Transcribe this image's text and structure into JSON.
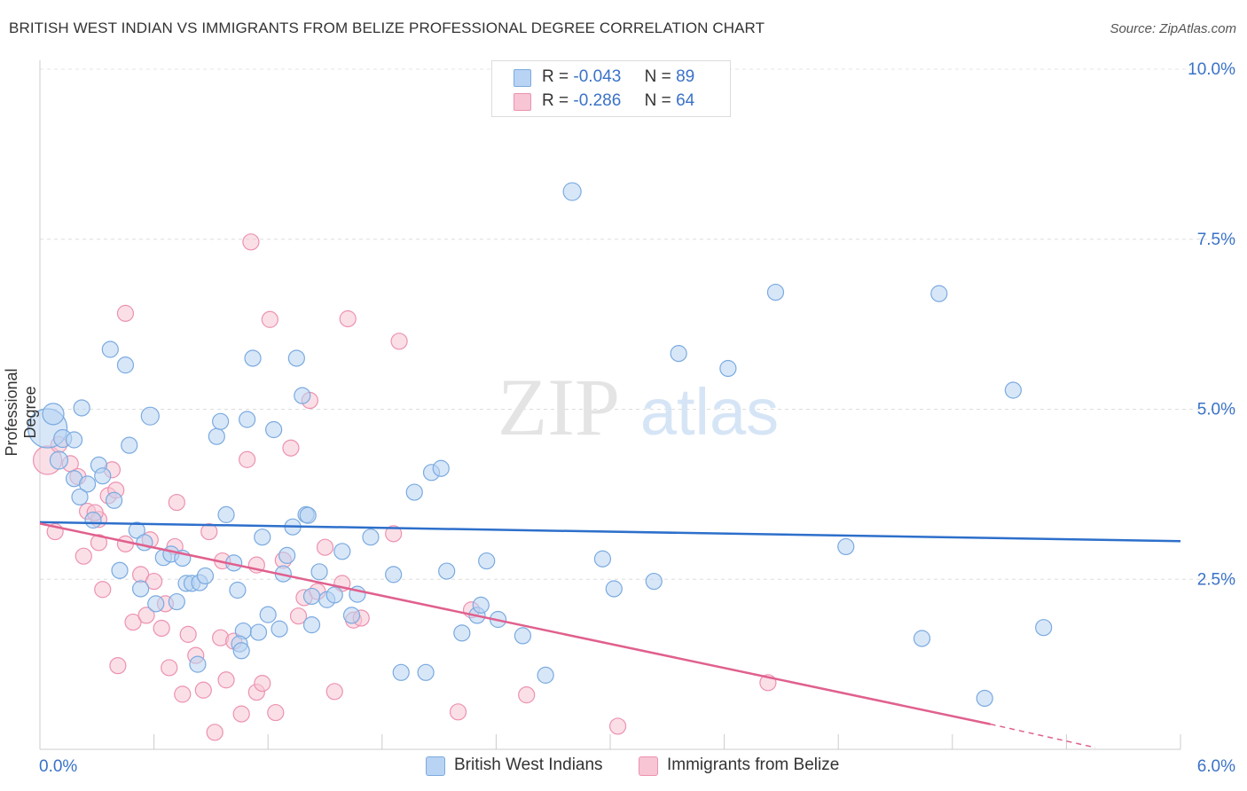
{
  "title": "BRITISH WEST INDIAN VS IMMIGRANTS FROM BELIZE PROFESSIONAL DEGREE CORRELATION CHART",
  "source": "Source: ZipAtlas.com",
  "watermark": {
    "zip": "ZIP",
    "atlas": "atlas"
  },
  "legend": {
    "r_label": "R =",
    "n_label": "N =",
    "rows": [
      {
        "r": "-0.043",
        "n": "89",
        "color": "#a8c8f0"
      },
      {
        "r": "-0.286",
        "n": "64",
        "color": "#f4b8cb"
      }
    ]
  },
  "colors": {
    "blue_fill": "#b8d3f3",
    "blue_stroke": "#7aaae0",
    "blue_line": "#2d6fcb",
    "pink_fill": "#f7c5d4",
    "pink_stroke": "#ec92b0",
    "pink_line": "#e0608e",
    "axis_text": "#3a72c8"
  },
  "chart_data": {
    "type": "scatter",
    "title": "BRITISH WEST INDIAN VS IMMIGRANTS FROM BELIZE PROFESSIONAL DEGREE CORRELATION CHART",
    "xlabel": "",
    "ylabel": "Professional Degree",
    "xlim": [
      0.0,
      6.0
    ],
    "ylim": [
      0.0,
      10.0
    ],
    "x_tick_labels": [
      "0.0%",
      "6.0%"
    ],
    "y_ticks": [
      2.5,
      5.0,
      7.5,
      10.0
    ],
    "y_tick_labels": [
      "2.5%",
      "5.0%",
      "7.5%",
      "10.0%"
    ],
    "grid": true,
    "legend_position": "top-center",
    "series": [
      {
        "name": "British West Indians",
        "r": -0.043,
        "n": 89,
        "trend": {
          "x0": 0.0,
          "y0": 3.34,
          "x1": 6.0,
          "y1": 3.06
        },
        "points": [
          [
            0.04,
            4.72,
            22
          ],
          [
            0.07,
            4.93,
            12
          ],
          [
            0.12,
            4.57,
            10
          ],
          [
            0.1,
            4.25,
            10
          ],
          [
            0.22,
            5.02,
            9
          ],
          [
            0.18,
            4.55,
            9
          ],
          [
            0.37,
            5.88,
            9
          ],
          [
            0.45,
            5.65,
            9
          ],
          [
            0.58,
            4.9,
            10
          ],
          [
            0.47,
            4.47,
            9
          ],
          [
            0.31,
            4.18,
            9
          ],
          [
            0.33,
            4.02,
            9
          ],
          [
            0.18,
            3.98,
            9
          ],
          [
            0.25,
            3.9,
            9
          ],
          [
            0.21,
            3.71,
            9
          ],
          [
            0.39,
            3.66,
            9
          ],
          [
            0.28,
            3.37,
            9
          ],
          [
            0.51,
            3.22,
            9
          ],
          [
            0.55,
            3.04,
            9
          ],
          [
            0.42,
            2.63,
            9
          ],
          [
            0.53,
            2.36,
            9
          ],
          [
            0.61,
            2.14,
            9
          ],
          [
            0.65,
            2.82,
            9
          ],
          [
            0.69,
            2.87,
            9
          ],
          [
            0.72,
            2.17,
            9
          ],
          [
            0.75,
            2.81,
            9
          ],
          [
            0.77,
            2.44,
            9
          ],
          [
            0.8,
            2.44,
            9
          ],
          [
            0.84,
            2.45,
            9
          ],
          [
            0.87,
            2.55,
            9
          ],
          [
            0.93,
            4.6,
            9
          ],
          [
            0.95,
            4.82,
            9
          ],
          [
            0.98,
            3.45,
            9
          ],
          [
            1.02,
            2.74,
            9
          ],
          [
            1.04,
            2.34,
            9
          ],
          [
            1.07,
            1.74,
            9
          ],
          [
            1.05,
            1.55,
            9
          ],
          [
            1.09,
            4.85,
            9
          ],
          [
            1.12,
            5.75,
            9
          ],
          [
            1.15,
            1.72,
            9
          ],
          [
            1.17,
            3.12,
            9
          ],
          [
            1.2,
            1.98,
            9
          ],
          [
            1.23,
            4.7,
            9
          ],
          [
            1.26,
            1.77,
            9
          ],
          [
            1.28,
            2.58,
            9
          ],
          [
            1.3,
            2.85,
            9
          ],
          [
            1.33,
            3.27,
            9
          ],
          [
            1.35,
            5.75,
            9
          ],
          [
            1.38,
            5.2,
            9
          ],
          [
            1.4,
            3.45,
            9
          ],
          [
            1.43,
            1.83,
            9
          ],
          [
            1.47,
            2.61,
            9
          ],
          [
            1.51,
            2.2,
            9
          ],
          [
            1.55,
            2.27,
            9
          ],
          [
            1.59,
            2.91,
            9
          ],
          [
            1.64,
            1.97,
            9
          ],
          [
            1.67,
            2.28,
            9
          ],
          [
            1.74,
            3.12,
            9
          ],
          [
            1.86,
            2.57,
            9
          ],
          [
            1.9,
            1.13,
            9
          ],
          [
            1.97,
            3.78,
            9
          ],
          [
            2.03,
            1.13,
            9
          ],
          [
            2.06,
            4.07,
            9
          ],
          [
            2.11,
            4.13,
            9
          ],
          [
            2.14,
            2.62,
            9
          ],
          [
            2.22,
            1.71,
            9
          ],
          [
            2.3,
            1.97,
            9
          ],
          [
            2.32,
            2.12,
            9
          ],
          [
            2.35,
            2.77,
            9
          ],
          [
            2.41,
            1.91,
            9
          ],
          [
            2.54,
            1.67,
            9
          ],
          [
            2.66,
            1.09,
            9
          ],
          [
            2.8,
            8.2,
            10
          ],
          [
            2.96,
            2.8,
            9
          ],
          [
            3.02,
            2.36,
            9
          ],
          [
            3.23,
            2.47,
            9
          ],
          [
            3.36,
            5.82,
            9
          ],
          [
            3.62,
            5.6,
            9
          ],
          [
            3.87,
            6.72,
            9
          ],
          [
            4.24,
            2.98,
            9
          ],
          [
            4.64,
            1.63,
            9
          ],
          [
            4.73,
            6.7,
            9
          ],
          [
            4.97,
            0.75,
            9
          ],
          [
            5.12,
            5.28,
            9
          ],
          [
            5.28,
            1.79,
            9
          ],
          [
            1.06,
            1.45,
            9
          ],
          [
            1.43,
            2.25,
            9
          ],
          [
            1.41,
            3.44,
            9
          ],
          [
            0.83,
            1.25,
            9
          ]
        ]
      },
      {
        "name": "Immigrants from Belize",
        "r": -0.286,
        "n": 64,
        "trend": {
          "x0": 0.0,
          "y0": 3.32,
          "x1": 5.0,
          "y1": 0.37
        },
        "trend_dashed": {
          "x0": 5.0,
          "y0": 0.37,
          "x1": 6.0,
          "y1": -0.22
        },
        "points": [
          [
            0.04,
            4.25,
            16
          ],
          [
            0.1,
            4.48,
            9
          ],
          [
            0.16,
            4.2,
            9
          ],
          [
            0.2,
            4.01,
            9
          ],
          [
            0.25,
            3.5,
            9
          ],
          [
            0.31,
            3.38,
            9
          ],
          [
            0.36,
            3.73,
            9
          ],
          [
            0.4,
            3.81,
            9
          ],
          [
            0.45,
            3.02,
            9
          ],
          [
            0.49,
            1.87,
            9
          ],
          [
            0.53,
            2.57,
            9
          ],
          [
            0.56,
            1.97,
            9
          ],
          [
            0.6,
            2.47,
            9
          ],
          [
            0.64,
            1.78,
            9
          ],
          [
            0.68,
            1.2,
            9
          ],
          [
            0.72,
            3.63,
            9
          ],
          [
            0.75,
            0.81,
            9
          ],
          [
            0.78,
            1.69,
            9
          ],
          [
            0.82,
            1.38,
            9
          ],
          [
            0.86,
            0.87,
            9
          ],
          [
            0.89,
            3.2,
            9
          ],
          [
            0.92,
            0.25,
            9
          ],
          [
            0.95,
            1.64,
            9
          ],
          [
            0.98,
            1.02,
            9
          ],
          [
            1.02,
            1.59,
            9
          ],
          [
            1.06,
            0.52,
            9
          ],
          [
            1.09,
            4.26,
            9
          ],
          [
            1.11,
            7.46,
            9
          ],
          [
            1.14,
            0.84,
            9
          ],
          [
            1.17,
            0.97,
            9
          ],
          [
            1.21,
            6.32,
            9
          ],
          [
            1.24,
            0.54,
            9
          ],
          [
            1.28,
            2.78,
            9
          ],
          [
            1.32,
            4.43,
            9
          ],
          [
            1.36,
            1.96,
            9
          ],
          [
            1.39,
            2.23,
            9
          ],
          [
            1.42,
            5.13,
            9
          ],
          [
            1.46,
            2.32,
            9
          ],
          [
            1.5,
            2.97,
            9
          ],
          [
            1.55,
            0.85,
            9
          ],
          [
            1.59,
            2.44,
            9
          ],
          [
            1.62,
            6.33,
            9
          ],
          [
            1.65,
            1.9,
            9
          ],
          [
            1.69,
            1.93,
            9
          ],
          [
            1.86,
            3.17,
            9
          ],
          [
            1.89,
            6.0,
            9
          ],
          [
            2.2,
            0.55,
            9
          ],
          [
            2.27,
            2.05,
            9
          ],
          [
            2.56,
            0.8,
            9
          ],
          [
            3.04,
            0.34,
            9
          ],
          [
            3.83,
            0.98,
            9
          ],
          [
            0.23,
            2.84,
            9
          ],
          [
            0.29,
            3.48,
            9
          ],
          [
            0.31,
            3.04,
            9
          ],
          [
            0.33,
            2.35,
            9
          ],
          [
            0.38,
            4.11,
            9
          ],
          [
            0.41,
            1.23,
            9
          ],
          [
            0.45,
            6.41,
            9
          ],
          [
            0.58,
            3.08,
            9
          ],
          [
            0.66,
            2.14,
            9
          ],
          [
            0.71,
            2.98,
            9
          ],
          [
            0.96,
            2.77,
            9
          ],
          [
            1.14,
            2.71,
            9
          ],
          [
            0.08,
            3.2,
            9
          ]
        ]
      }
    ]
  }
}
